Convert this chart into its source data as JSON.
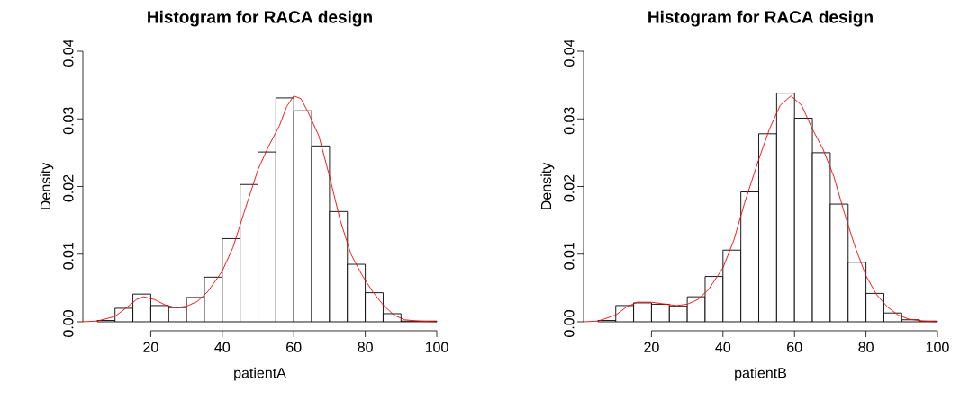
{
  "chart_data": [
    {
      "type": "histogram",
      "title": "Histogram for RACA design",
      "xlabel": "patientA",
      "ylabel": "Density",
      "color": "#ffffff",
      "bins": [
        5,
        10,
        15,
        20,
        25,
        30,
        35,
        40,
        45,
        50,
        55,
        60,
        65,
        70,
        75,
        80,
        85,
        90,
        95,
        100
      ],
      "values": [
        0.0002,
        0.002,
        0.0041,
        0.0024,
        0.0021,
        0.0036,
        0.0066,
        0.0123,
        0.0203,
        0.0251,
        0.0331,
        0.0312,
        0.026,
        0.0163,
        0.0085,
        0.0043,
        0.0012,
        0.0001,
        0.0001
      ],
      "series": [
        {
          "type": "line",
          "color": "#ff0000",
          "x": [
            1,
            5,
            10,
            13,
            16,
            18,
            21,
            24,
            27,
            30,
            33,
            36,
            40,
            43,
            46,
            50,
            53,
            56,
            58,
            60,
            62,
            64,
            67,
            70,
            73,
            76,
            79,
            82,
            85,
            88,
            91,
            95,
            100
          ],
          "values": [
            0,
            0.0001,
            0.0008,
            0.002,
            0.0033,
            0.0037,
            0.0033,
            0.0025,
            0.0021,
            0.0023,
            0.003,
            0.0045,
            0.0075,
            0.011,
            0.016,
            0.0225,
            0.026,
            0.029,
            0.0318,
            0.0334,
            0.033,
            0.031,
            0.0275,
            0.0215,
            0.015,
            0.01,
            0.007,
            0.0045,
            0.0025,
            0.001,
            0.0003,
            0.0001,
            0
          ]
        }
      ],
      "xlim": [
        1,
        100
      ],
      "ylim": [
        0,
        0.04
      ],
      "xticks": [
        20,
        40,
        60,
        80,
        100
      ],
      "yticks": [
        {
          "value": 0,
          "label": "0.00"
        },
        {
          "value": 0.01,
          "label": "0.01"
        },
        {
          "value": 0.02,
          "label": "0.02"
        },
        {
          "value": 0.03,
          "label": "0.03"
        },
        {
          "value": 0.04,
          "label": "0.04"
        }
      ]
    },
    {
      "type": "histogram",
      "title": "Histogram for RACA design",
      "xlabel": "patientB",
      "ylabel": "Density",
      "color": "#ffffff",
      "bins": [
        5,
        10,
        15,
        20,
        25,
        30,
        35,
        40,
        45,
        50,
        55,
        60,
        65,
        70,
        75,
        80,
        85,
        90,
        95,
        100
      ],
      "values": [
        0.0002,
        0.0024,
        0.0028,
        0.0026,
        0.0023,
        0.0037,
        0.0067,
        0.0106,
        0.0192,
        0.0278,
        0.0338,
        0.0301,
        0.025,
        0.0174,
        0.0088,
        0.0042,
        0.0013,
        0.0003,
        0.0001
      ],
      "series": [
        {
          "type": "line",
          "color": "#ff0000",
          "x": [
            1,
            5,
            10,
            13,
            16,
            20,
            24,
            27,
            30,
            33,
            36,
            40,
            43,
            46,
            50,
            53,
            56,
            59,
            62,
            65,
            68,
            71,
            74,
            77,
            80,
            83,
            86,
            89,
            92,
            96,
            100
          ],
          "values": [
            0,
            0.0001,
            0.001,
            0.0022,
            0.0029,
            0.0029,
            0.0026,
            0.0024,
            0.0026,
            0.0033,
            0.0048,
            0.008,
            0.012,
            0.0175,
            0.024,
            0.0285,
            0.032,
            0.0334,
            0.032,
            0.0285,
            0.0255,
            0.0215,
            0.016,
            0.011,
            0.0068,
            0.004,
            0.0022,
            0.001,
            0.0004,
            0.0001,
            0
          ]
        }
      ],
      "xlim": [
        1,
        100
      ],
      "ylim": [
        0,
        0.04
      ],
      "xticks": [
        20,
        40,
        60,
        80,
        100
      ],
      "yticks": [
        {
          "value": 0,
          "label": "0.00"
        },
        {
          "value": 0.01,
          "label": "0.01"
        },
        {
          "value": 0.02,
          "label": "0.02"
        },
        {
          "value": 0.03,
          "label": "0.03"
        },
        {
          "value": 0.04,
          "label": "0.04"
        }
      ]
    }
  ]
}
